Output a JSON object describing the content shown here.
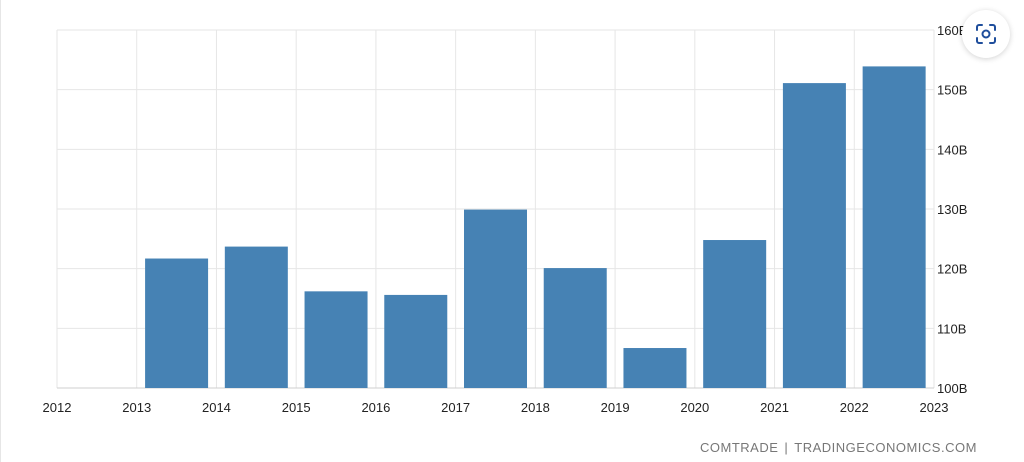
{
  "chart_data": {
    "type": "bar",
    "categories": [
      "2013",
      "2014",
      "2015",
      "2016",
      "2017",
      "2018",
      "2019",
      "2020",
      "2021",
      "2022"
    ],
    "values": [
      121.7,
      123.7,
      116.2,
      115.6,
      129.9,
      120.1,
      106.7,
      124.8,
      151.1,
      153.9
    ],
    "x_ticks": [
      "2012",
      "2013",
      "2014",
      "2015",
      "2016",
      "2017",
      "2018",
      "2019",
      "2020",
      "2021",
      "2022",
      "2023"
    ],
    "x_range": [
      2012,
      2023
    ],
    "y_ticks": [
      "100B",
      "110B",
      "120B",
      "130B",
      "140B",
      "150B",
      "160B"
    ],
    "ylim": [
      100,
      160
    ],
    "y_axis_position": "right",
    "grid": true,
    "bar_color": "#4682b4",
    "grid_color": "#e6e6e6"
  },
  "source": {
    "left": "COMTRADE",
    "separator": "|",
    "right": "TRADINGECONOMICS.COM"
  },
  "zoom_button": {
    "icon": "focus-scan-icon",
    "color": "#1f4e9c"
  }
}
